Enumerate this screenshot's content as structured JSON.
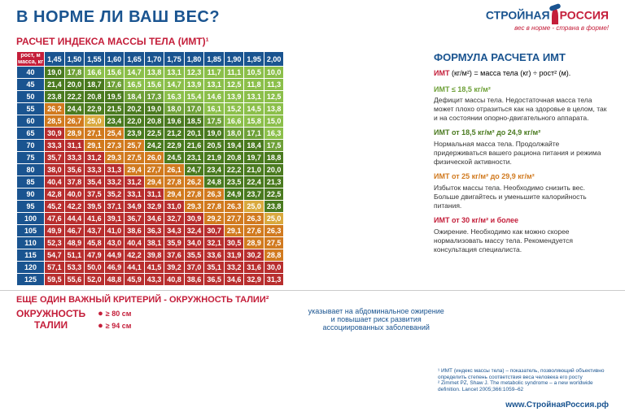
{
  "title": "В НОРМЕ ЛИ ВАШ ВЕС?",
  "logo": {
    "part1": "СТРОЙНАЯ",
    "part2": "РОССИЯ",
    "sub": "вес в норме - страна в форме!"
  },
  "subtitle": "РАСЧЕТ ИНДЕКСА МАССЫ ТЕЛА (ИМТ)¹",
  "table": {
    "corner": "рост, м\nмасса, кг",
    "heights": [
      "1,45",
      "1,50",
      "1,55",
      "1,60",
      "1,65",
      "1,70",
      "1,75",
      "1,80",
      "1,85",
      "1,90",
      "1,95",
      "2,00"
    ],
    "weights": [
      "40",
      "45",
      "50",
      "55",
      "60",
      "65",
      "70",
      "75",
      "80",
      "85",
      "90",
      "95",
      "100",
      "105",
      "110",
      "115",
      "120",
      "125"
    ],
    "values": [
      [
        "19,0",
        "17,8",
        "16,6",
        "15,6",
        "14,7",
        "13,8",
        "13,1",
        "12,3",
        "11,7",
        "11,1",
        "10,5",
        "10,0"
      ],
      [
        "21,4",
        "20,0",
        "18,7",
        "17,6",
        "16,5",
        "15,6",
        "14,7",
        "13,9",
        "13,1",
        "12,5",
        "11,8",
        "11,3"
      ],
      [
        "23,8",
        "22,2",
        "20,8",
        "19,5",
        "18,4",
        "17,3",
        "16,3",
        "15,4",
        "14,6",
        "13,9",
        "13,1",
        "12,5"
      ],
      [
        "26,2",
        "24,4",
        "22,9",
        "21,5",
        "20,2",
        "19,0",
        "18,0",
        "17,0",
        "16,1",
        "15,2",
        "14,5",
        "13,8"
      ],
      [
        "28,5",
        "26,7",
        "25,0",
        "23,4",
        "22,0",
        "20,8",
        "19,6",
        "18,5",
        "17,5",
        "16,6",
        "15,8",
        "15,0"
      ],
      [
        "30,9",
        "28,9",
        "27,1",
        "25,4",
        "23,9",
        "22,5",
        "21,2",
        "20,1",
        "19,0",
        "18,0",
        "17,1",
        "16,3"
      ],
      [
        "33,3",
        "31,1",
        "29,1",
        "27,3",
        "25,7",
        "24,2",
        "22,9",
        "21,6",
        "20,5",
        "19,4",
        "18,4",
        "17,5"
      ],
      [
        "35,7",
        "33,3",
        "31,2",
        "29,3",
        "27,5",
        "26,0",
        "24,5",
        "23,1",
        "21,9",
        "20,8",
        "19,7",
        "18,8"
      ],
      [
        "38,0",
        "35,6",
        "33,3",
        "31,3",
        "29,4",
        "27,7",
        "26,1",
        "24,7",
        "23,4",
        "22,2",
        "21,0",
        "20,0"
      ],
      [
        "40,4",
        "37,8",
        "35,4",
        "33,2",
        "31,2",
        "29,4",
        "27,8",
        "26,2",
        "24,8",
        "23,5",
        "22,4",
        "21,3"
      ],
      [
        "42,8",
        "40,0",
        "37,5",
        "35,2",
        "33,1",
        "31,1",
        "29,4",
        "27,8",
        "26,3",
        "24,9",
        "23,7",
        "22,5"
      ],
      [
        "45,2",
        "42,2",
        "39,5",
        "37,1",
        "34,9",
        "32,9",
        "31,0",
        "29,3",
        "27,8",
        "26,3",
        "25,0",
        "23,8"
      ],
      [
        "47,6",
        "44,4",
        "41,6",
        "39,1",
        "36,7",
        "34,6",
        "32,7",
        "30,9",
        "29,2",
        "27,7",
        "26,3",
        "25,0"
      ],
      [
        "49,9",
        "46,7",
        "43,7",
        "41,0",
        "38,6",
        "36,3",
        "34,3",
        "32,4",
        "30,7",
        "29,1",
        "27,6",
        "26,3"
      ],
      [
        "52,3",
        "48,9",
        "45,8",
        "43,0",
        "40,4",
        "38,1",
        "35,9",
        "34,0",
        "32,1",
        "30,5",
        "28,9",
        "27,5"
      ],
      [
        "54,7",
        "51,1",
        "47,9",
        "44,9",
        "42,2",
        "39,8",
        "37,6",
        "35,5",
        "33,6",
        "31,9",
        "30,2",
        "28,8"
      ],
      [
        "57,1",
        "53,3",
        "50,0",
        "46,9",
        "44,1",
        "41,5",
        "39,2",
        "37,0",
        "35,1",
        "33,2",
        "31,6",
        "30,0"
      ],
      [
        "59,5",
        "55,6",
        "52,0",
        "48,8",
        "45,9",
        "43,3",
        "40,8",
        "38,6",
        "36,5",
        "34,6",
        "32,9",
        "31,3"
      ]
    ],
    "colors": {
      "c1": "#8bbf4a",
      "c2": "#6ea038",
      "c3": "#4a7a1f",
      "c4": "#d9a93e",
      "c5": "#d17a1f",
      "c6": "#c9472a",
      "c7": "#b82e2e"
    },
    "colorMap": [
      [
        3,
        2,
        1,
        1,
        1,
        1,
        1,
        1,
        1,
        1,
        1,
        1
      ],
      [
        3,
        3,
        3,
        2,
        1,
        1,
        1,
        1,
        1,
        1,
        1,
        1
      ],
      [
        3,
        3,
        3,
        3,
        2,
        2,
        1,
        1,
        1,
        1,
        1,
        1
      ],
      [
        5,
        3,
        3,
        3,
        3,
        3,
        2,
        2,
        1,
        1,
        1,
        1
      ],
      [
        5,
        5,
        4,
        3,
        3,
        3,
        3,
        3,
        2,
        1,
        1,
        1
      ],
      [
        7,
        5,
        5,
        5,
        3,
        3,
        3,
        3,
        3,
        2,
        2,
        1
      ],
      [
        7,
        7,
        5,
        5,
        5,
        3,
        3,
        3,
        3,
        3,
        3,
        2
      ],
      [
        7,
        7,
        7,
        5,
        5,
        5,
        3,
        3,
        3,
        3,
        3,
        3
      ],
      [
        7,
        7,
        7,
        7,
        5,
        5,
        5,
        3,
        3,
        3,
        3,
        3
      ],
      [
        7,
        7,
        7,
        7,
        7,
        5,
        5,
        5,
        3,
        3,
        3,
        3
      ],
      [
        7,
        7,
        7,
        7,
        7,
        7,
        5,
        5,
        5,
        3,
        3,
        3
      ],
      [
        7,
        7,
        7,
        7,
        7,
        7,
        7,
        5,
        5,
        5,
        4,
        3
      ],
      [
        7,
        7,
        7,
        7,
        7,
        7,
        7,
        7,
        5,
        5,
        5,
        4
      ],
      [
        7,
        7,
        7,
        7,
        7,
        7,
        7,
        7,
        7,
        5,
        5,
        5
      ],
      [
        7,
        7,
        7,
        7,
        7,
        7,
        7,
        7,
        7,
        7,
        5,
        5
      ],
      [
        7,
        7,
        7,
        7,
        7,
        7,
        7,
        7,
        7,
        7,
        7,
        5
      ],
      [
        7,
        7,
        7,
        7,
        7,
        7,
        7,
        7,
        7,
        7,
        7,
        7
      ],
      [
        7,
        7,
        7,
        7,
        7,
        7,
        7,
        7,
        7,
        7,
        7,
        7
      ]
    ]
  },
  "formulaTitle": "ФОРМУЛА РАСЧЕТА ИМТ",
  "formula": {
    "b": "ИМТ",
    "t": " (кг/м²) = масса тела (кг) ÷ рост² (м)."
  },
  "cats": [
    {
      "h": "ИМТ ≤ 18,5 кг/м²",
      "t": "Дефицит массы тела. Недостаточная масса тела может плохо отразиться как на здоровье в целом, так и на состоянии опорно-двигательного аппарата."
    },
    {
      "h": "ИМТ от 18,5 кг/м² до 24,9 кг/м²",
      "t": "Нормальная масса тела. Продолжайте придерживаться вашего рациона питания и режима физической активности."
    },
    {
      "h": "ИМТ от 25 кг/м² до 29,9 кг/м²",
      "t": "Избыток массы тела. Необходимо снизить вес. Больше двигайтесь и уменьшите калорийность питания."
    },
    {
      "h": "ИМТ от 30 кг/м² и более",
      "t": "Ожирение. Необходимо как можно скорее нормализовать массу тела. Рекомендуется консультация специалиста."
    }
  ],
  "waist": {
    "title": "ЕЩЕ ОДИН ВАЖНЫЙ КРИТЕРИЙ - ",
    "titleRed": "ОКРУЖНОСТЬ ТАЛИИ²",
    "label": "ОКРУЖНОСТЬ\nТАЛИИ",
    "f": "≥ 80 см",
    "m": "≥ 94 см",
    "text": "указывает на абдоминальное ожирение\nи повышает риск развития\nассоциированных заболеваний"
  },
  "footnotes": "¹ ИМТ (индекс массы тела) – показатель, позволяющий объективно определить степень соответствия веса человека его росту\n² Zimmet PZ, Shaw J. The metabolic syndrome – a new worldwide definition. Lancet 2005;366:1059–62",
  "url": "www.СтройнаяРоссия.рф"
}
